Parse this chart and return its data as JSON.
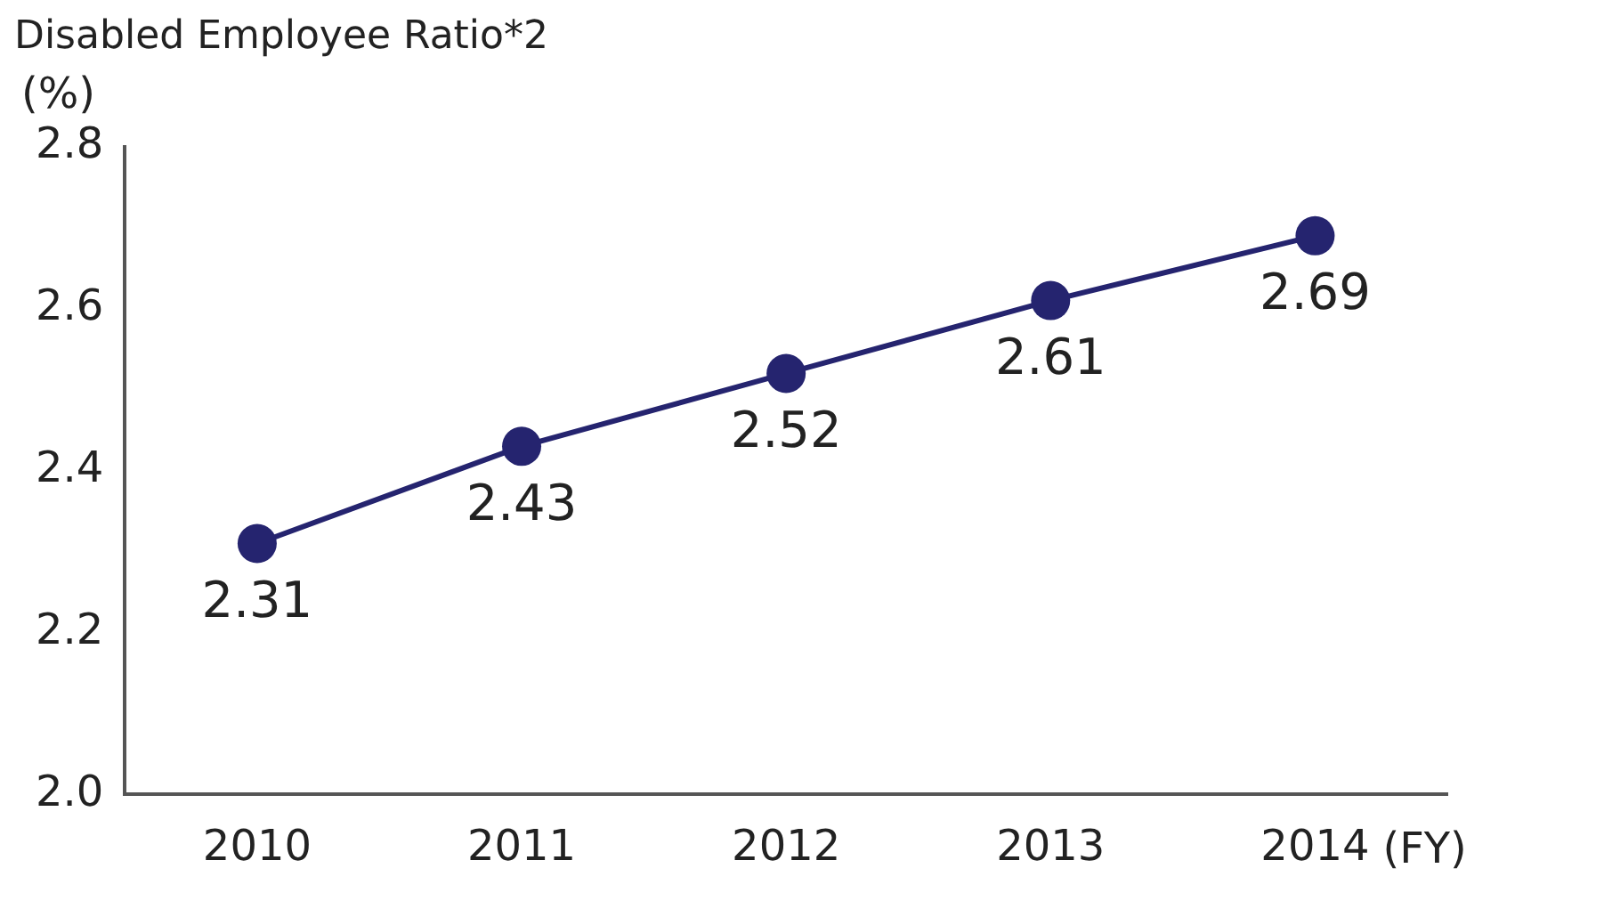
{
  "chart_data": {
    "type": "line",
    "title": "Disabled Employee Ratio*2",
    "ylabel": "(%)",
    "xlabel": "(FY)",
    "categories": [
      "2010",
      "2011",
      "2012",
      "2013",
      "2014"
    ],
    "series": [
      {
        "color": "#25246f",
        "values": [
          2.31,
          2.43,
          2.52,
          2.61,
          2.69
        ]
      }
    ],
    "ylim": [
      2.0,
      2.8
    ],
    "yticks": [
      {
        "value": 2.0,
        "label": "2.0"
      },
      2.2,
      2.4,
      2.6,
      2.8
    ],
    "data_labels": true,
    "grid": false,
    "legend": false,
    "marker": "circle",
    "line_style": "solid"
  }
}
